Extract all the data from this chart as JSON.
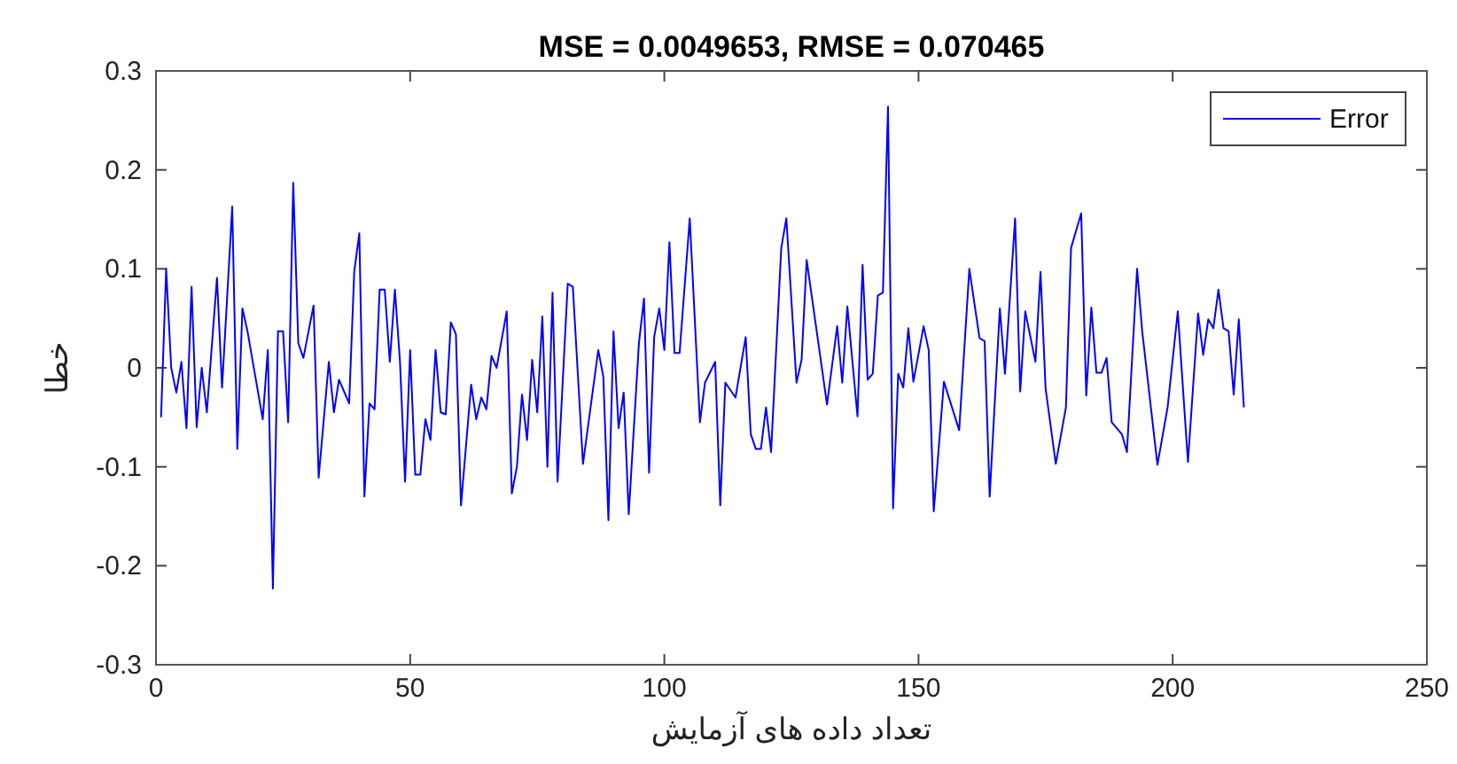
{
  "chart_data": {
    "type": "line",
    "title": "MSE = 0.0049653, RMSE = 0.070465",
    "xlabel": "تعداد داده های آزمایش",
    "ylabel": "خطا",
    "xlim": [
      0,
      250
    ],
    "xticks": [
      0,
      50,
      100,
      150,
      200,
      250
    ],
    "ylim": [
      -0.3,
      0.3
    ],
    "yticks": [
      -0.3,
      -0.2,
      -0.1,
      0,
      0.1,
      0.2,
      0.3
    ],
    "grid": false,
    "legend": "top right",
    "series": [
      {
        "name": "Error",
        "color": "#0000ff",
        "x": [
          1,
          2,
          3,
          4,
          5,
          6,
          7,
          8,
          9,
          10,
          12,
          13,
          15,
          16,
          17,
          18,
          21,
          22,
          23,
          24,
          25,
          26,
          27,
          28,
          29,
          31,
          32,
          34,
          35,
          36,
          38,
          39,
          40,
          41,
          42,
          43,
          44,
          45,
          46,
          47,
          48,
          49,
          50,
          51,
          52,
          53,
          54,
          55,
          56,
          57,
          58,
          59,
          60,
          62,
          63,
          64,
          65,
          66,
          67,
          69,
          70,
          71,
          72,
          73,
          74,
          75,
          76,
          77,
          78,
          79,
          81,
          82,
          84,
          87,
          88,
          89,
          90,
          91,
          92,
          93,
          95,
          96,
          97,
          98,
          99,
          100,
          101,
          102,
          103,
          105,
          107,
          108,
          110,
          111,
          112,
          114,
          116,
          117,
          118,
          119,
          120,
          121,
          123,
          124,
          126,
          127,
          128,
          132,
          134,
          135,
          136,
          138,
          139,
          140,
          141,
          142,
          143,
          144,
          145,
          146,
          147,
          148,
          149,
          151,
          152,
          153,
          155,
          158,
          160,
          162,
          163,
          164,
          166,
          167,
          169,
          170,
          171,
          173,
          174,
          175,
          177,
          179,
          180,
          182,
          183,
          184,
          185,
          186,
          187,
          188,
          190,
          191,
          193,
          194,
          197,
          199,
          201,
          203,
          205,
          206,
          207,
          208,
          209,
          210,
          211,
          212,
          213,
          214
        ],
        "values": [
          -0.05,
          0.1,
          0,
          -0.025,
          0.006,
          -0.061,
          0.082,
          -0.06,
          0,
          -0.045,
          0.091,
          -0.02,
          0.163,
          -0.082,
          0.06,
          0.037,
          -0.052,
          0.018,
          -0.223,
          0.037,
          0.037,
          -0.055,
          0.187,
          0.025,
          0.01,
          0.063,
          -0.111,
          0.006,
          -0.045,
          -0.012,
          -0.036,
          0.097,
          0.136,
          -0.13,
          -0.036,
          -0.042,
          0.079,
          0.079,
          0.006,
          0.079,
          0.006,
          -0.115,
          0.018,
          -0.108,
          -0.108,
          -0.052,
          -0.073,
          0.018,
          -0.045,
          -0.047,
          0.046,
          0.034,
          -0.139,
          -0.017,
          -0.052,
          -0.03,
          -0.042,
          0.012,
          0,
          0.057,
          -0.127,
          -0.1,
          -0.027,
          -0.073,
          0.008,
          -0.045,
          0.052,
          -0.1,
          0.076,
          -0.115,
          0.085,
          0.082,
          -0.097,
          0.018,
          -0.009,
          -0.154,
          0.037,
          -0.061,
          -0.025,
          -0.148,
          0.025,
          0.07,
          -0.106,
          0.031,
          0.06,
          0.018,
          0.127,
          0.015,
          0.015,
          0.151,
          -0.055,
          -0.015,
          0.006,
          -0.139,
          -0.015,
          -0.03,
          0.031,
          -0.067,
          -0.082,
          -0.082,
          -0.04,
          -0.085,
          0.121,
          0.151,
          -0.015,
          0.008,
          0.109,
          -0.037,
          0.042,
          -0.015,
          0.062,
          -0.049,
          0.104,
          -0.012,
          -0.006,
          0.073,
          0.076,
          0.264,
          -0.142,
          -0.006,
          -0.02,
          0.04,
          -0.014,
          0.042,
          0.018,
          -0.145,
          -0.014,
          -0.063,
          0.1,
          0.03,
          0.027,
          -0.13,
          0.06,
          -0.006,
          0.151,
          -0.024,
          0.057,
          0.006,
          0.097,
          -0.021,
          -0.097,
          -0.04,
          0.121,
          0.156,
          -0.028,
          0.061,
          -0.005,
          -0.005,
          0.01,
          -0.055,
          -0.067,
          -0.085,
          0.1,
          0.037,
          -0.098,
          -0.04,
          0.057,
          -0.095,
          0.055,
          0.013,
          0.049,
          0.04,
          0.079,
          0.04,
          0.037,
          -0.027,
          0.049,
          -0.04
        ]
      }
    ]
  }
}
